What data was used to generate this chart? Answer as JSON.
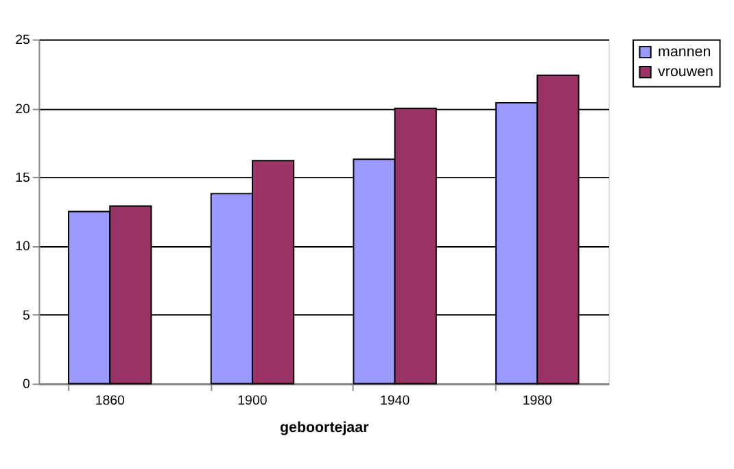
{
  "chart_data": {
    "type": "bar",
    "xlabel": "geboortejaar",
    "categories": [
      "1860",
      "1900",
      "1940",
      "1980"
    ],
    "series": [
      {
        "name": "mannen",
        "color": "#9999ff",
        "values": [
          12.5,
          13.8,
          16.3,
          20.4
        ]
      },
      {
        "name": "vrouwen",
        "color": "#993366",
        "values": [
          12.9,
          16.2,
          20.0,
          22.4
        ]
      }
    ],
    "ylim": [
      0,
      25
    ],
    "yticks": [
      0,
      5,
      10,
      15,
      20,
      25
    ],
    "grid": "y",
    "legend": "right"
  }
}
